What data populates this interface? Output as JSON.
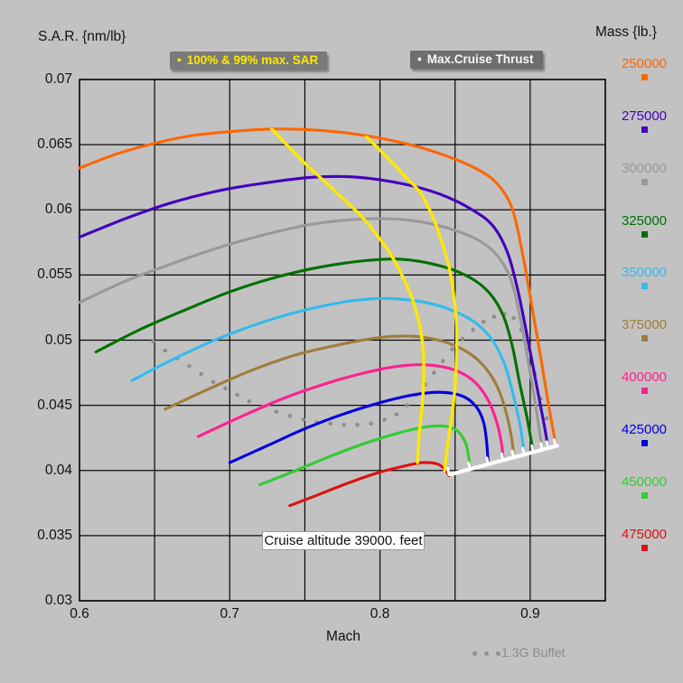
{
  "header": {
    "left_title": "S.A.R. {nm/lb}",
    "right_title": "Mass {lb.}"
  },
  "legends": {
    "sar": {
      "bullet": "•",
      "label": "100% & 99% max. SAR",
      "text_color": "#FFE800",
      "bg": "#7A7A7A"
    },
    "thrust": {
      "bullet": "•",
      "label": "Max.Cruise Thrust",
      "text_color": "#F7F7F7",
      "bg": "#6E6E6E"
    },
    "buffet": {
      "label": "1.3G Buffet",
      "text_color": "#8A8A8A"
    }
  },
  "annotation": {
    "text": "Cruise altitude 39000. feet"
  },
  "chart_data": {
    "type": "line",
    "title": "",
    "xlabel": "Mach",
    "ylabel": "S.A.R. {nm/lb}",
    "legend_title": "Mass {lb.}",
    "xlim": [
      0.6,
      0.95
    ],
    "ylim": [
      0.03,
      0.07
    ],
    "grid": true,
    "x_gridlines": [
      0.6,
      0.65,
      0.7,
      0.75,
      0.8,
      0.85,
      0.9,
      0.95
    ],
    "y_gridlines": [
      0.03,
      0.035,
      0.04,
      0.045,
      0.05,
      0.055,
      0.06,
      0.065,
      0.07
    ],
    "x_ticks": [
      {
        "v": 0.6,
        "label": "0.6"
      },
      {
        "v": 0.7,
        "label": "0.7"
      },
      {
        "v": 0.8,
        "label": "0.8"
      },
      {
        "v": 0.9,
        "label": "0.9"
      }
    ],
    "y_ticks": [
      {
        "v": 0.07,
        "label": "0.07"
      },
      {
        "v": 0.065,
        "label": "0.065"
      },
      {
        "v": 0.06,
        "label": "0.06"
      },
      {
        "v": 0.055,
        "label": "0.055"
      },
      {
        "v": 0.05,
        "label": "0.05"
      },
      {
        "v": 0.045,
        "label": "0.045"
      },
      {
        "v": 0.04,
        "label": "0.04"
      },
      {
        "v": 0.035,
        "label": "0.035"
      },
      {
        "v": 0.03,
        "label": "0.03"
      }
    ],
    "series": [
      {
        "name": "250000",
        "color": "#FF6600",
        "points": [
          [
            0.6,
            0.0632
          ],
          [
            0.625,
            0.0643
          ],
          [
            0.65,
            0.0651
          ],
          [
            0.675,
            0.0657
          ],
          [
            0.7,
            0.066
          ],
          [
            0.728,
            0.0662
          ],
          [
            0.76,
            0.0661
          ],
          [
            0.79,
            0.0657
          ],
          [
            0.82,
            0.065
          ],
          [
            0.845,
            0.0641
          ],
          [
            0.865,
            0.0631
          ],
          [
            0.878,
            0.062
          ],
          [
            0.888,
            0.0601
          ],
          [
            0.895,
            0.0566
          ],
          [
            0.901,
            0.0527
          ],
          [
            0.907,
            0.0487
          ],
          [
            0.912,
            0.0452
          ],
          [
            0.917,
            0.042
          ]
        ]
      },
      {
        "name": "275000",
        "color": "#4400BB",
        "points": [
          [
            0.6,
            0.0579
          ],
          [
            0.63,
            0.0593
          ],
          [
            0.66,
            0.0605
          ],
          [
            0.69,
            0.0614
          ],
          [
            0.72,
            0.062
          ],
          [
            0.755,
            0.0625
          ],
          [
            0.785,
            0.0625
          ],
          [
            0.815,
            0.062
          ],
          [
            0.84,
            0.0612
          ],
          [
            0.86,
            0.0601
          ],
          [
            0.875,
            0.0588
          ],
          [
            0.885,
            0.0567
          ],
          [
            0.892,
            0.0537
          ],
          [
            0.898,
            0.0503
          ],
          [
            0.904,
            0.0467
          ],
          [
            0.909,
            0.0437
          ],
          [
            0.912,
            0.0417
          ]
        ]
      },
      {
        "name": "300000",
        "color": "#999999",
        "points": [
          [
            0.6,
            0.0529
          ],
          [
            0.63,
            0.0545
          ],
          [
            0.66,
            0.0558
          ],
          [
            0.69,
            0.057
          ],
          [
            0.72,
            0.058
          ],
          [
            0.755,
            0.0589
          ],
          [
            0.79,
            0.0593
          ],
          [
            0.82,
            0.0592
          ],
          [
            0.845,
            0.0586
          ],
          [
            0.865,
            0.0577
          ],
          [
            0.878,
            0.0565
          ],
          [
            0.887,
            0.0547
          ],
          [
            0.893,
            0.0519
          ],
          [
            0.898,
            0.0488
          ],
          [
            0.903,
            0.0455
          ],
          [
            0.908,
            0.0416
          ]
        ]
      },
      {
        "name": "325000",
        "color": "#007000",
        "points": [
          [
            0.611,
            0.0491
          ],
          [
            0.64,
            0.0508
          ],
          [
            0.67,
            0.0523
          ],
          [
            0.7,
            0.0537
          ],
          [
            0.73,
            0.0548
          ],
          [
            0.76,
            0.0556
          ],
          [
            0.79,
            0.0561
          ],
          [
            0.815,
            0.0562
          ],
          [
            0.84,
            0.0557
          ],
          [
            0.86,
            0.0548
          ],
          [
            0.873,
            0.0536
          ],
          [
            0.882,
            0.0519
          ],
          [
            0.888,
            0.0496
          ],
          [
            0.893,
            0.0467
          ],
          [
            0.898,
            0.044
          ],
          [
            0.902,
            0.0414
          ]
        ]
      },
      {
        "name": "350000",
        "color": "#33BBEE",
        "points": [
          [
            0.635,
            0.0469
          ],
          [
            0.66,
            0.0484
          ],
          [
            0.69,
            0.05
          ],
          [
            0.72,
            0.0513
          ],
          [
            0.75,
            0.0523
          ],
          [
            0.78,
            0.053
          ],
          [
            0.805,
            0.0532
          ],
          [
            0.83,
            0.0529
          ],
          [
            0.85,
            0.0522
          ],
          [
            0.865,
            0.0512
          ],
          [
            0.876,
            0.0498
          ],
          [
            0.884,
            0.0478
          ],
          [
            0.89,
            0.0452
          ],
          [
            0.894,
            0.043
          ],
          [
            0.896,
            0.0412
          ]
        ]
      },
      {
        "name": "375000",
        "color": "#A07D3C",
        "points": [
          [
            0.657,
            0.0447
          ],
          [
            0.685,
            0.0462
          ],
          [
            0.715,
            0.0477
          ],
          [
            0.745,
            0.0489
          ],
          [
            0.775,
            0.0497
          ],
          [
            0.8,
            0.0502
          ],
          [
            0.822,
            0.0503
          ],
          [
            0.842,
            0.0499
          ],
          [
            0.858,
            0.0491
          ],
          [
            0.87,
            0.0479
          ],
          [
            0.879,
            0.0462
          ],
          [
            0.885,
            0.044
          ],
          [
            0.888,
            0.0422
          ],
          [
            0.889,
            0.041
          ]
        ]
      },
      {
        "name": "400000",
        "color": "#FF2090",
        "points": [
          [
            0.679,
            0.0426
          ],
          [
            0.705,
            0.044
          ],
          [
            0.735,
            0.0455
          ],
          [
            0.765,
            0.0467
          ],
          [
            0.79,
            0.0475
          ],
          [
            0.812,
            0.048
          ],
          [
            0.832,
            0.0481
          ],
          [
            0.85,
            0.0477
          ],
          [
            0.863,
            0.0468
          ],
          [
            0.872,
            0.0454
          ],
          [
            0.878,
            0.0436
          ],
          [
            0.881,
            0.042
          ],
          [
            0.882,
            0.0408
          ]
        ]
      },
      {
        "name": "425000",
        "color": "#0000DD",
        "points": [
          [
            0.7,
            0.0406
          ],
          [
            0.725,
            0.0419
          ],
          [
            0.75,
            0.0432
          ],
          [
            0.775,
            0.0443
          ],
          [
            0.8,
            0.0452
          ],
          [
            0.822,
            0.0458
          ],
          [
            0.84,
            0.046
          ],
          [
            0.855,
            0.0457
          ],
          [
            0.864,
            0.0449
          ],
          [
            0.869,
            0.0437
          ],
          [
            0.871,
            0.0422
          ],
          [
            0.872,
            0.0406
          ]
        ]
      },
      {
        "name": "450000",
        "color": "#33CC33",
        "points": [
          [
            0.72,
            0.0389
          ],
          [
            0.742,
            0.0399
          ],
          [
            0.765,
            0.041
          ],
          [
            0.788,
            0.042
          ],
          [
            0.81,
            0.0428
          ],
          [
            0.828,
            0.0433
          ],
          [
            0.843,
            0.0434
          ],
          [
            0.852,
            0.043
          ],
          [
            0.857,
            0.0421
          ],
          [
            0.859,
            0.0411
          ],
          [
            0.86,
            0.0401
          ]
        ]
      },
      {
        "name": "475000",
        "color": "#DD1111",
        "points": [
          [
            0.74,
            0.0373
          ],
          [
            0.758,
            0.0381
          ],
          [
            0.778,
            0.039
          ],
          [
            0.798,
            0.0398
          ],
          [
            0.815,
            0.0403
          ],
          [
            0.828,
            0.0406
          ],
          [
            0.838,
            0.0405
          ],
          [
            0.843,
            0.0401
          ],
          [
            0.846,
            0.0396
          ]
        ]
      }
    ],
    "max_sar_lines": {
      "color": "#FFE800",
      "lines": [
        {
          "name": "100% max SAR",
          "points": [
            [
              0.728,
              0.0662
            ],
            [
              0.748,
              0.0638
            ],
            [
              0.762,
              0.0623
            ],
            [
              0.775,
              0.0609
            ],
            [
              0.786,
              0.0597
            ],
            [
              0.795,
              0.0585
            ],
            [
              0.806,
              0.0568
            ],
            [
              0.815,
              0.0549
            ],
            [
              0.822,
              0.053
            ],
            [
              0.827,
              0.0508
            ],
            [
              0.829,
              0.0488
            ],
            [
              0.829,
              0.0468
            ],
            [
              0.828,
              0.0448
            ],
            [
              0.826,
              0.0426
            ],
            [
              0.825,
              0.0406
            ]
          ]
        },
        {
          "name": "99% max SAR",
          "points": [
            [
              0.791,
              0.0656
            ],
            [
              0.805,
              0.064
            ],
            [
              0.818,
              0.0624
            ],
            [
              0.827,
              0.0613
            ],
            [
              0.835,
              0.0595
            ],
            [
              0.841,
              0.0576
            ],
            [
              0.846,
              0.0556
            ],
            [
              0.849,
              0.0535
            ],
            [
              0.851,
              0.0512
            ],
            [
              0.851,
              0.0488
            ],
            [
              0.85,
              0.0465
            ],
            [
              0.848,
              0.0443
            ],
            [
              0.845,
              0.042
            ],
            [
              0.843,
              0.04
            ]
          ]
        }
      ]
    },
    "max_cruise_thrust_line": {
      "name": "Max.Cruise Thrust",
      "color": "#FFFFFF",
      "points": [
        [
          0.847,
          0.0397
        ],
        [
          0.918,
          0.0419
        ]
      ]
    },
    "buffet_line": {
      "name": "1.3G Buffet",
      "style": "dotted",
      "color": "#8F8F8F",
      "points": [
        [
          0.649,
          0.0499
        ],
        [
          0.657,
          0.0492
        ],
        [
          0.665,
          0.0486
        ],
        [
          0.673,
          0.048
        ],
        [
          0.681,
          0.0474
        ],
        [
          0.689,
          0.0468
        ],
        [
          0.697,
          0.0463
        ],
        [
          0.705,
          0.0458
        ],
        [
          0.713,
          0.0453
        ],
        [
          0.722,
          0.0449
        ],
        [
          0.731,
          0.0445
        ],
        [
          0.74,
          0.0442
        ],
        [
          0.749,
          0.0439
        ],
        [
          0.758,
          0.0437
        ],
        [
          0.767,
          0.0436
        ],
        [
          0.776,
          0.0435
        ],
        [
          0.785,
          0.0435
        ],
        [
          0.794,
          0.0436
        ],
        [
          0.803,
          0.0439
        ],
        [
          0.811,
          0.0443
        ],
        [
          0.818,
          0.045
        ],
        [
          0.824,
          0.0458
        ],
        [
          0.83,
          0.0466
        ],
        [
          0.836,
          0.0475
        ],
        [
          0.842,
          0.0484
        ],
        [
          0.848,
          0.0493
        ],
        [
          0.855,
          0.0501
        ],
        [
          0.862,
          0.0508
        ],
        [
          0.869,
          0.0514
        ],
        [
          0.876,
          0.0518
        ],
        [
          0.883,
          0.052
        ],
        [
          0.889,
          0.0517
        ],
        [
          0.894,
          0.0508
        ],
        [
          0.899,
          0.0493
        ],
        [
          0.903,
          0.0474
        ],
        [
          0.907,
          0.0455
        ],
        [
          0.911,
          0.044
        ]
      ]
    }
  }
}
